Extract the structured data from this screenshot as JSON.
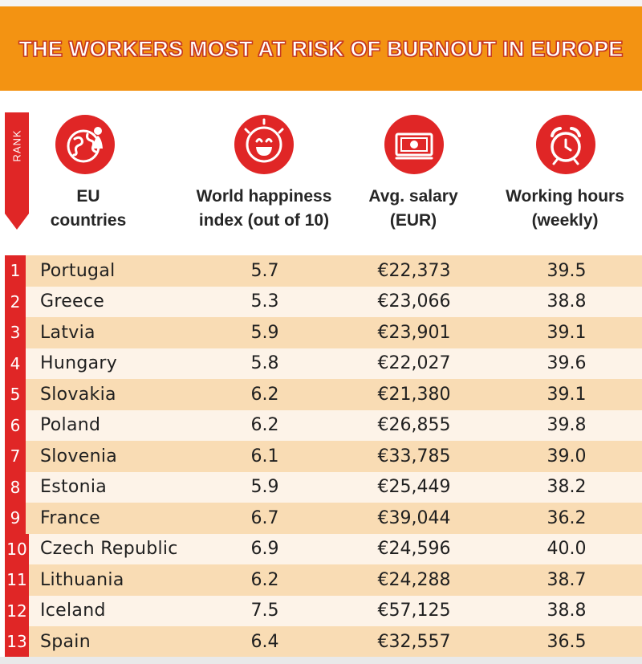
{
  "title": "THE WORKERS MOST AT RISK OF BURNOUT IN EUROPE",
  "rank_label": "RANK",
  "colors": {
    "banner": "#f39312",
    "accent_red": "#e02626",
    "row_dark": "#f9dcb4",
    "row_light": "#fdf3e8"
  },
  "columns": {
    "country": {
      "line1": "EU",
      "line2": "countries",
      "icon": "globe-with-person-icon"
    },
    "happiness": {
      "line1": "World happiness",
      "line2": "index (out of 10)",
      "icon": "smiley-face-icon"
    },
    "salary": {
      "line1": "Avg. salary",
      "line2": "(EUR)",
      "icon": "banknote-icon"
    },
    "hours": {
      "line1": "Working hours",
      "line2": "(weekly)",
      "icon": "alarm-clock-icon"
    }
  },
  "chart_data": {
    "type": "table",
    "title": "THE WORKERS MOST AT RISK OF BURNOUT IN EUROPE",
    "columns": [
      "RANK",
      "EU countries",
      "World happiness index (out of 10)",
      "Avg. salary (EUR)",
      "Working hours (weekly)"
    ],
    "rows": [
      {
        "rank": "1",
        "country": "Portugal",
        "happiness": "5.7",
        "salary": "€22,373",
        "hours": "39.5"
      },
      {
        "rank": "2",
        "country": "Greece",
        "happiness": "5.3",
        "salary": "€23,066",
        "hours": "38.8"
      },
      {
        "rank": "3",
        "country": "Latvia",
        "happiness": "5.9",
        "salary": "€23,901",
        "hours": "39.1"
      },
      {
        "rank": "4",
        "country": "Hungary",
        "happiness": "5.8",
        "salary": "€22,027",
        "hours": "39.6"
      },
      {
        "rank": "5",
        "country": "Slovakia",
        "happiness": "6.2",
        "salary": "€21,380",
        "hours": "39.1"
      },
      {
        "rank": "6",
        "country": "Poland",
        "happiness": "6.2",
        "salary": "€26,855",
        "hours": "39.8"
      },
      {
        "rank": "7",
        "country": "Slovenia",
        "happiness": "6.1",
        "salary": "€33,785",
        "hours": "39.0"
      },
      {
        "rank": "8",
        "country": "Estonia",
        "happiness": "5.9",
        "salary": "€25,449",
        "hours": "38.2"
      },
      {
        "rank": "9",
        "country": "France",
        "happiness": "6.7",
        "salary": "€39,044",
        "hours": "36.2"
      },
      {
        "rank": "10",
        "country": "Czech Republic",
        "happiness": "6.9",
        "salary": "€24,596",
        "hours": "40.0"
      },
      {
        "rank": "11",
        "country": "Lithuania",
        "happiness": "6.2",
        "salary": "€24,288",
        "hours": "38.7"
      },
      {
        "rank": "12",
        "country": "Iceland",
        "happiness": "7.5",
        "salary": "€57,125",
        "hours": "38.8"
      },
      {
        "rank": "13",
        "country": "Spain",
        "happiness": "6.4",
        "salary": "€32,557",
        "hours": "36.5"
      }
    ]
  }
}
